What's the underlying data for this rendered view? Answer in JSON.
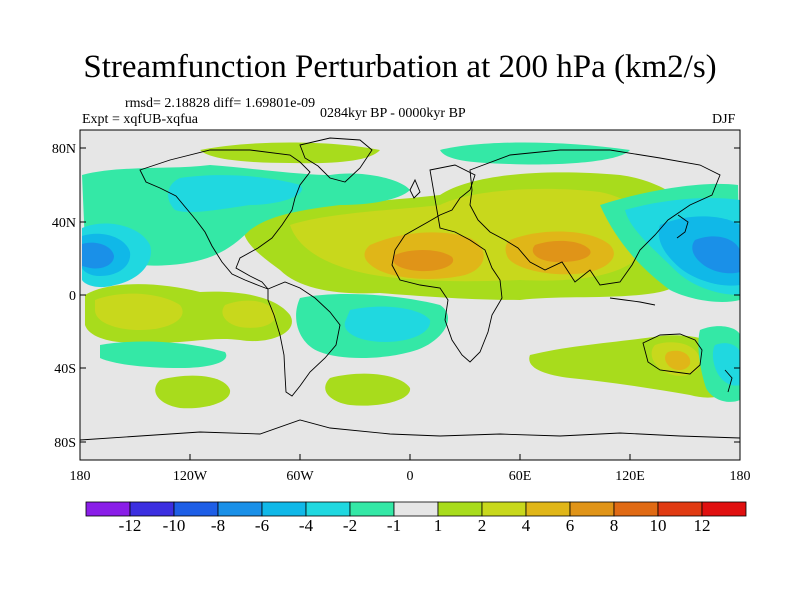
{
  "title": "Streamfunction Perturbation at 200 hPa (km2/s)",
  "stats": "rmsd= 2.18828 diff= 1.69801e-09",
  "experiment": "Expt = xqfUB-xqfua",
  "period": "0284kyr BP - 0000kyr BP",
  "season": "DJF",
  "lat_ticks": [
    "80N",
    "40N",
    "0",
    "40S",
    "80S"
  ],
  "lon_ticks": [
    "180",
    "120W",
    "60W",
    "0",
    "60E",
    "120E",
    "180"
  ],
  "colorbar": {
    "labels": [
      "-12",
      "-10",
      "-8",
      "-6",
      "-4",
      "-2",
      "-1",
      "1",
      "2",
      "4",
      "6",
      "8",
      "10",
      "12"
    ],
    "colors": [
      "#8a1ee8",
      "#3c2fe0",
      "#1e5ee6",
      "#1a90e8",
      "#10b8e8",
      "#20d8e0",
      "#34e8a6",
      "#e6e6e6",
      "#a8dc1c",
      "#c8d81c",
      "#e0b618",
      "#e09418",
      "#e06a14",
      "#e03a12",
      "#e01010"
    ]
  },
  "map_colors": {
    "ocean": "#e6e6e6",
    "green": "#a8dc1c",
    "yellow": "#c8d81c",
    "gold": "#e0b618",
    "orange": "#e09418",
    "mint": "#34e8a6",
    "cyan": "#20d8e0",
    "lightblue": "#10b8e8",
    "blue": "#1a90e8"
  }
}
